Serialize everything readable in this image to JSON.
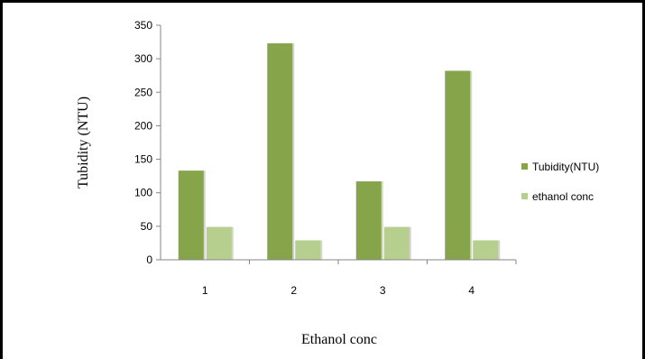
{
  "chart_data": {
    "type": "bar",
    "categories": [
      "1",
      "2",
      "3",
      "4"
    ],
    "series": [
      {
        "name": "Tubidity(NTU)",
        "values": [
          133,
          323,
          117,
          282
        ],
        "color": "#86A54A"
      },
      {
        "name": "ethanol conc",
        "values": [
          49,
          29,
          49,
          29
        ],
        "color": "#B6CF8E"
      }
    ],
    "title": "",
    "xlabel": "Ethanol conc",
    "ylabel": "Tubidity (NTU)",
    "ylim": [
      0,
      350
    ],
    "yticks": [
      "0",
      "50",
      "100",
      "150",
      "200",
      "250",
      "300",
      "350"
    ],
    "grid": false,
    "legend": "right"
  }
}
